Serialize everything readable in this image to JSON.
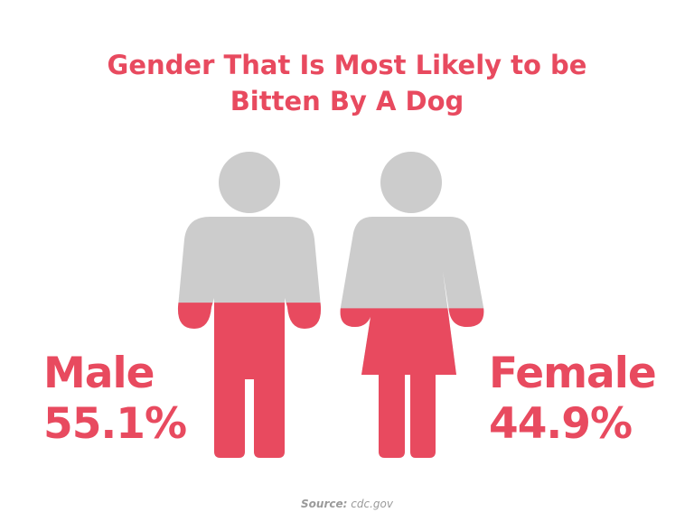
{
  "title": {
    "line1": "Gender That Is Most Likely to be",
    "line2": "Bitten By A Dog"
  },
  "colors": {
    "accent": "#e84a5f",
    "figure_gray": "#cccccc",
    "source_text": "#9a9a9a"
  },
  "chart_data": {
    "type": "pictograph",
    "title": "Gender That Is Most Likely to be Bitten By A Dog",
    "categories": [
      "Male",
      "Female"
    ],
    "values": [
      55.1,
      44.9
    ],
    "unit": "%"
  },
  "labels": {
    "male": {
      "name": "Male",
      "value": "55.1%"
    },
    "female": {
      "name": "Female",
      "value": "44.9%"
    }
  },
  "source": {
    "key": "Source:",
    "value": "cdc.gov"
  }
}
